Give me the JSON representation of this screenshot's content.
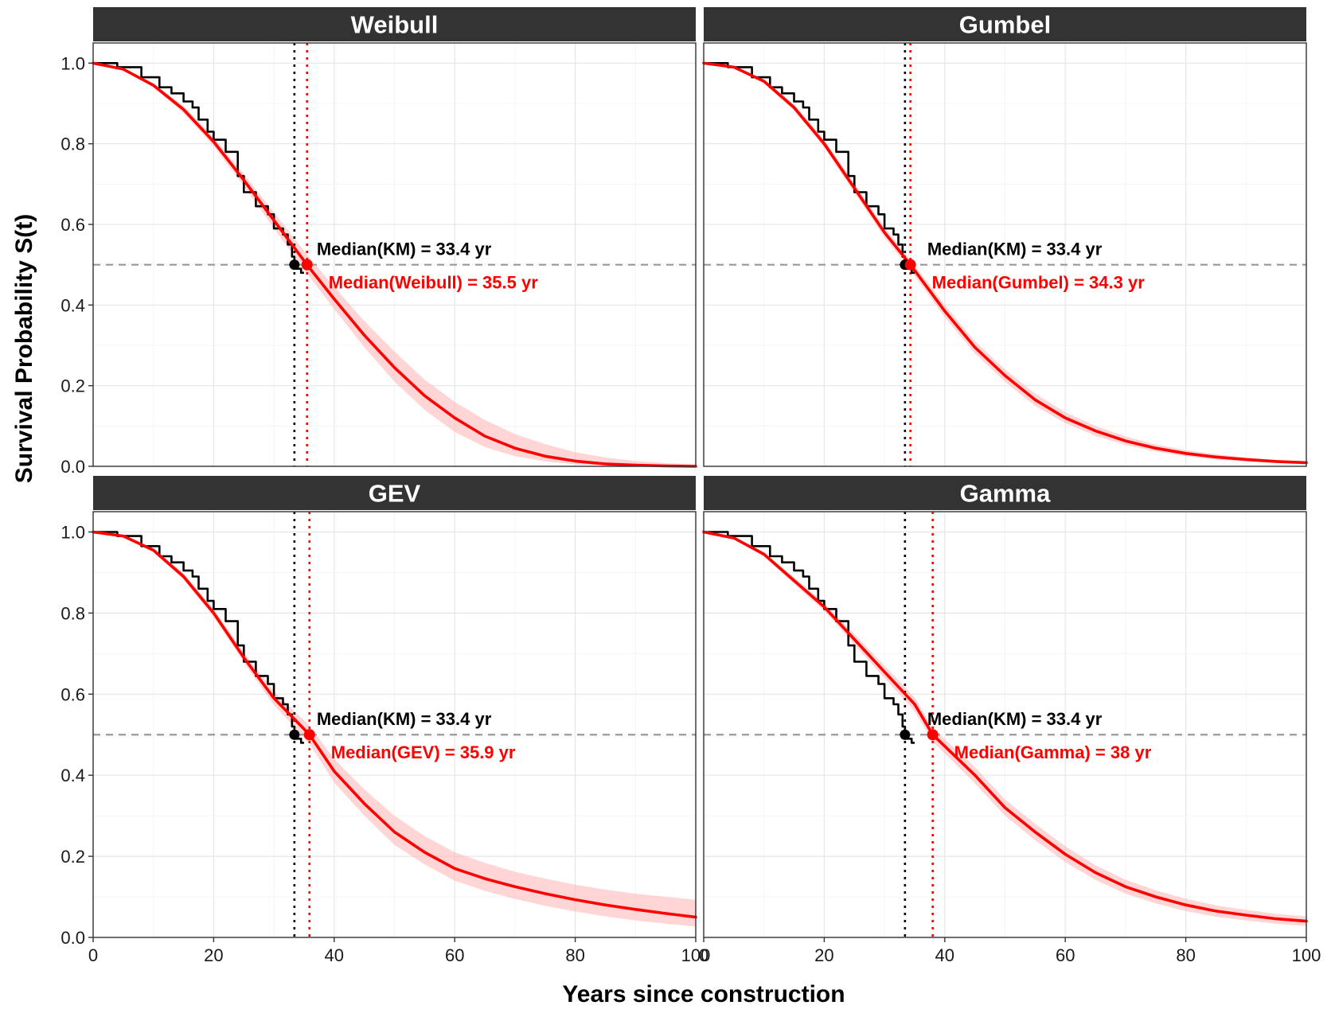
{
  "chart_data": {
    "type": "line",
    "xlabel": "Years since construction",
    "ylabel": "Survival Probability S(t)",
    "xlim": [
      0,
      100
    ],
    "ylim": [
      0,
      1
    ],
    "x_ticks": [
      "0",
      "20",
      "40",
      "60",
      "80",
      "100"
    ],
    "y_ticks": [
      "0.0",
      "0.2",
      "0.4",
      "0.6",
      "0.8",
      "1.0"
    ],
    "grid": true,
    "reference_line": {
      "y": 0.5,
      "style": "dashed",
      "color": "#999999"
    },
    "km_color": "#000000",
    "fit_color": "#ff0000",
    "band_color": "#ffb3b3",
    "km_curve": {
      "x": [
        0,
        4,
        8,
        11,
        13,
        15,
        16.5,
        17.5,
        19,
        20,
        22,
        24,
        25,
        27,
        29,
        30,
        31.5,
        32.3,
        33,
        33.4,
        34.5,
        35
      ],
      "y": [
        1.0,
        0.99,
        0.965,
        0.94,
        0.925,
        0.905,
        0.89,
        0.86,
        0.83,
        0.81,
        0.78,
        0.72,
        0.68,
        0.645,
        0.625,
        0.59,
        0.575,
        0.55,
        0.52,
        0.49,
        0.48,
        0.48
      ]
    },
    "panels": [
      {
        "title": "Weibull",
        "km_median": 33.4,
        "fit_median": 35.5,
        "km_label": "Median(KM) = 33.4 yr",
        "fit_label": "Median(Weibull) = 35.5 yr",
        "fit_curve": {
          "x": [
            0,
            5,
            10,
            15,
            20,
            25,
            30,
            35.5,
            40,
            45,
            50,
            55,
            60,
            65,
            70,
            75,
            80,
            85,
            90,
            95,
            100
          ],
          "y": [
            1.0,
            0.985,
            0.945,
            0.885,
            0.805,
            0.71,
            0.61,
            0.5,
            0.415,
            0.325,
            0.245,
            0.175,
            0.12,
            0.075,
            0.045,
            0.025,
            0.013,
            0.006,
            0.003,
            0.001,
            0.0
          ]
        },
        "ci_lower": [
          1.0,
          0.983,
          0.94,
          0.876,
          0.794,
          0.695,
          0.59,
          0.478,
          0.39,
          0.295,
          0.21,
          0.14,
          0.085,
          0.048,
          0.025,
          0.012,
          0.005,
          0.002,
          0.001,
          0.0,
          0.0
        ],
        "ci_upper": [
          1.0,
          0.987,
          0.95,
          0.894,
          0.816,
          0.725,
          0.63,
          0.525,
          0.445,
          0.36,
          0.285,
          0.215,
          0.16,
          0.115,
          0.08,
          0.055,
          0.035,
          0.022,
          0.013,
          0.008,
          0.005
        ]
      },
      {
        "title": "Gumbel",
        "km_median": 33.4,
        "fit_median": 34.3,
        "km_label": "Median(KM) = 33.4 yr",
        "fit_label": "Median(Gumbel) = 34.3 yr",
        "fit_curve": {
          "x": [
            0,
            5,
            10,
            15,
            20,
            25,
            30,
            34.3,
            40,
            45,
            50,
            55,
            60,
            65,
            70,
            75,
            80,
            85,
            90,
            95,
            100
          ],
          "y": [
            1.0,
            0.99,
            0.955,
            0.89,
            0.8,
            0.69,
            0.58,
            0.5,
            0.385,
            0.295,
            0.225,
            0.165,
            0.12,
            0.088,
            0.063,
            0.045,
            0.032,
            0.023,
            0.017,
            0.012,
            0.009
          ]
        },
        "ci_lower": [
          1.0,
          0.988,
          0.95,
          0.882,
          0.79,
          0.678,
          0.568,
          0.487,
          0.37,
          0.28,
          0.21,
          0.15,
          0.107,
          0.076,
          0.053,
          0.037,
          0.025,
          0.017,
          0.012,
          0.008,
          0.005
        ],
        "ci_upper": [
          1.0,
          0.992,
          0.96,
          0.898,
          0.81,
          0.702,
          0.592,
          0.513,
          0.4,
          0.31,
          0.24,
          0.18,
          0.134,
          0.1,
          0.074,
          0.054,
          0.04,
          0.03,
          0.022,
          0.016,
          0.012
        ]
      },
      {
        "title": "GEV",
        "km_median": 33.4,
        "fit_median": 35.9,
        "km_label": "Median(KM) = 33.4 yr",
        "fit_label": "Median(GEV) = 35.9 yr",
        "fit_curve": {
          "x": [
            0,
            5,
            10,
            15,
            20,
            25,
            30,
            35.9,
            40,
            45,
            50,
            55,
            60,
            65,
            70,
            75,
            80,
            85,
            90,
            95,
            100
          ],
          "y": [
            1.0,
            0.99,
            0.955,
            0.89,
            0.8,
            0.69,
            0.59,
            0.5,
            0.41,
            0.33,
            0.26,
            0.21,
            0.17,
            0.145,
            0.125,
            0.108,
            0.093,
            0.08,
            0.069,
            0.059,
            0.05
          ]
        },
        "ci_lower": [
          1.0,
          0.988,
          0.95,
          0.882,
          0.79,
          0.678,
          0.573,
          0.478,
          0.382,
          0.3,
          0.228,
          0.18,
          0.14,
          0.115,
          0.095,
          0.078,
          0.064,
          0.052,
          0.042,
          0.034,
          0.027
        ],
        "ci_upper": [
          1.0,
          0.992,
          0.96,
          0.898,
          0.81,
          0.703,
          0.607,
          0.522,
          0.44,
          0.365,
          0.3,
          0.25,
          0.21,
          0.184,
          0.162,
          0.145,
          0.13,
          0.118,
          0.108,
          0.1,
          0.093
        ]
      },
      {
        "title": "Gamma",
        "km_median": 33.4,
        "fit_median": 38,
        "km_label": "Median(KM) = 33.4 yr",
        "fit_label": "Median(Gamma) = 38 yr",
        "fit_curve": {
          "x": [
            0,
            5,
            10,
            15,
            20,
            25,
            30,
            35,
            38,
            45,
            50,
            55,
            60,
            65,
            70,
            75,
            80,
            85,
            90,
            95,
            100
          ],
          "y": [
            1.0,
            0.985,
            0.945,
            0.88,
            0.815,
            0.735,
            0.655,
            0.575,
            0.5,
            0.4,
            0.32,
            0.26,
            0.205,
            0.16,
            0.125,
            0.1,
            0.08,
            0.065,
            0.055,
            0.046,
            0.04
          ]
        },
        "ci_lower": [
          1.0,
          0.983,
          0.94,
          0.872,
          0.805,
          0.722,
          0.64,
          0.558,
          0.483,
          0.38,
          0.3,
          0.24,
          0.186,
          0.142,
          0.108,
          0.084,
          0.065,
          0.051,
          0.042,
          0.034,
          0.028
        ],
        "ci_upper": [
          1.0,
          0.987,
          0.95,
          0.888,
          0.825,
          0.748,
          0.67,
          0.592,
          0.517,
          0.42,
          0.34,
          0.28,
          0.225,
          0.178,
          0.142,
          0.116,
          0.095,
          0.079,
          0.068,
          0.058,
          0.052
        ]
      }
    ]
  }
}
